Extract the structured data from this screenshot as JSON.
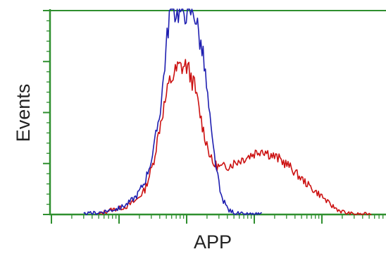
{
  "chart_data": {
    "type": "line",
    "title": "",
    "xlabel": "APP",
    "ylabel": "Events",
    "xscale": "log",
    "xlim": [
      0.1,
      10000
    ],
    "ylim": [
      0,
      100
    ],
    "grid": false,
    "legend": "none",
    "series": [
      {
        "color": "#cc1111",
        "x": [
          0.5,
          0.7,
          1.0,
          1.3,
          1.8,
          2.4,
          3.2,
          4.2,
          5.6,
          7.5,
          10,
          13,
          18,
          24,
          32,
          42,
          56,
          75,
          100,
          130,
          180,
          240,
          320,
          420,
          560,
          750,
          1000,
          1300,
          1800,
          2400,
          3200,
          4200,
          5600
        ],
        "values": [
          0,
          2,
          3,
          4,
          7,
          12,
          25,
          47,
          65,
          72,
          73,
          63,
          40,
          25,
          23,
          24,
          26,
          28,
          30,
          32,
          29,
          27,
          24,
          20,
          16,
          12,
          9,
          5,
          2,
          0.5,
          0,
          0,
          0
        ]
      },
      {
        "color": "#1f1fb0",
        "x": [
          0.3,
          0.5,
          0.7,
          1.0,
          1.3,
          1.8,
          2.4,
          3.2,
          4.2,
          5.6,
          7.5,
          10,
          13,
          18,
          24,
          32,
          42,
          56,
          75,
          100,
          130
        ],
        "values": [
          0,
          1,
          2,
          3,
          5,
          9,
          16,
          30,
          55,
          100,
          100,
          100,
          100,
          75,
          35,
          9,
          2,
          0.5,
          0,
          0,
          0
        ]
      }
    ]
  }
}
